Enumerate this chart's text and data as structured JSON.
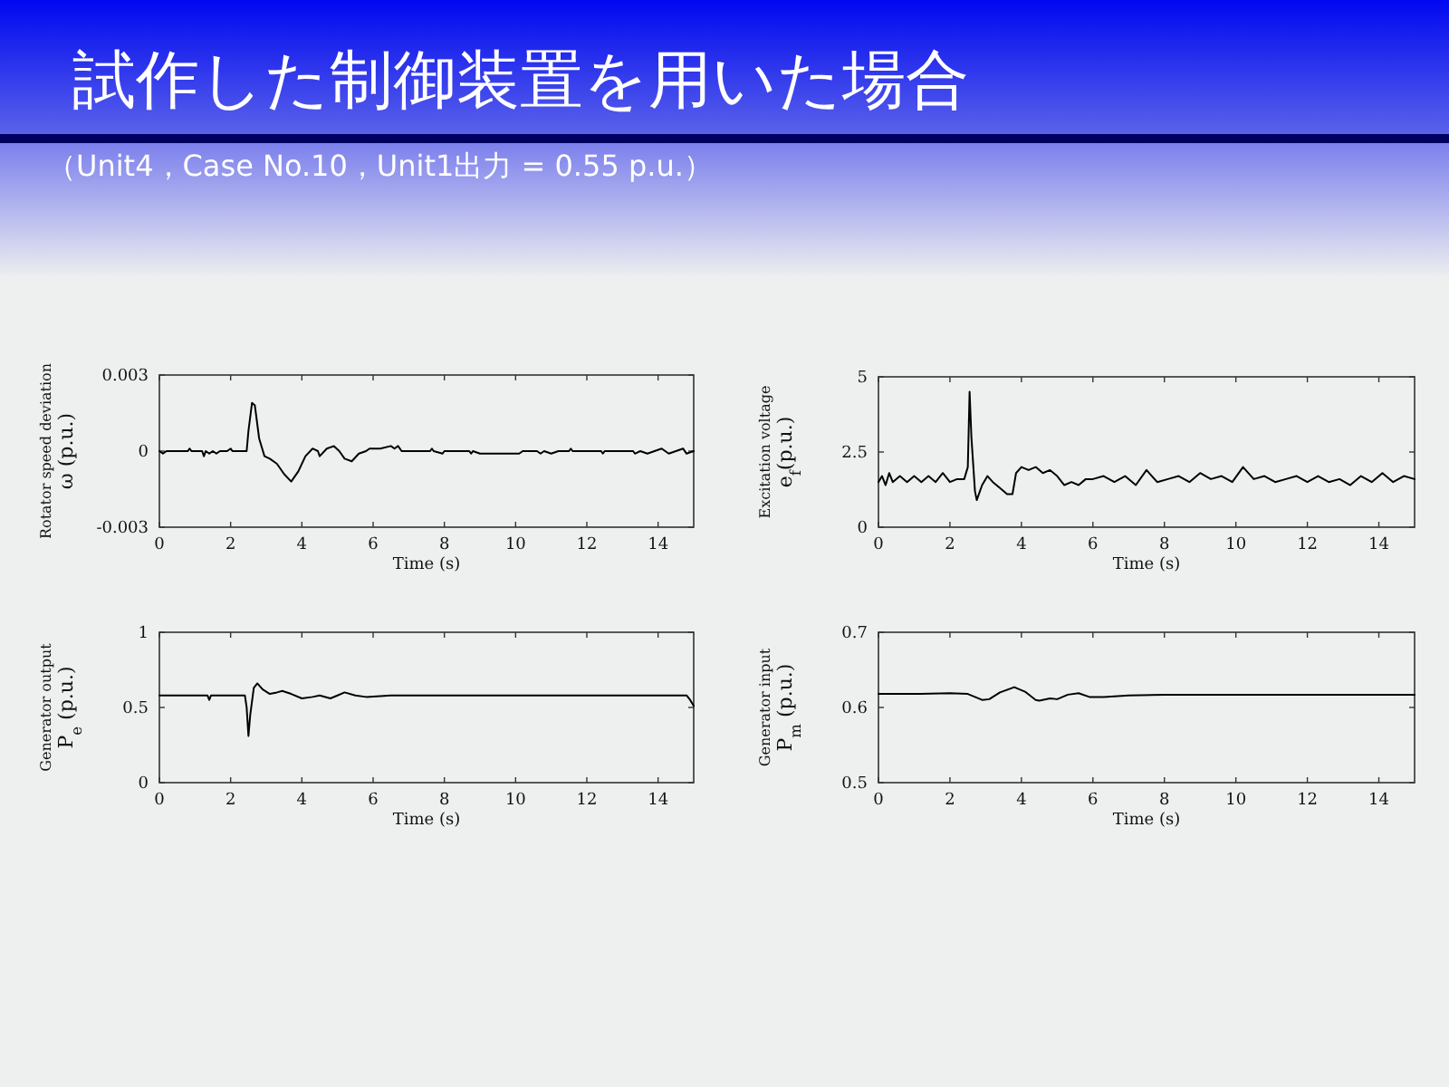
{
  "chart_data": [
    {
      "type": "line",
      "title": "試作した制御装置を用いた場合",
      "subtitle": "（Unit4，Case No.10，Unit1出力 = 0.55 p.u.）",
      "xlabel": "Time (s)",
      "ylabel": "Rotator speed deviation\nω (p.u.)",
      "color": "#000000",
      "xlim": [
        0,
        15
      ],
      "ylim": [
        -0.003,
        0.003
      ],
      "xticks": [
        0,
        2,
        4,
        6,
        8,
        10,
        12,
        14
      ],
      "yticks": [
        -0.003,
        0,
        0.003
      ],
      "x": [
        0,
        0.1,
        0.2,
        0.8,
        0.85,
        0.9,
        1.2,
        1.25,
        1.3,
        1.4,
        1.5,
        1.6,
        1.7,
        1.9,
        2.0,
        2.05,
        2.45,
        2.5,
        2.6,
        2.68,
        2.8,
        2.95,
        3.1,
        3.3,
        3.5,
        3.7,
        3.9,
        4.1,
        4.3,
        4.45,
        4.5,
        4.7,
        4.9,
        5.05,
        5.2,
        5.4,
        5.6,
        5.8,
        5.9,
        6.2,
        6.5,
        6.6,
        6.7,
        6.8,
        7.6,
        7.65,
        7.7,
        7.95,
        8.0,
        8.7,
        8.75,
        8.8,
        9.0,
        9.1,
        10.1,
        10.2,
        10.6,
        10.7,
        10.8,
        11.0,
        11.2,
        11.5,
        11.55,
        11.6,
        12.4,
        12.45,
        12.5,
        13.3,
        13.35,
        13.5,
        13.7,
        13.9,
        14.1,
        14.3,
        14.5,
        14.7,
        14.8,
        15
      ],
      "values": [
        0,
        -0.0001,
        0,
        0,
        0.0001,
        0,
        0,
        -0.0002,
        0,
        -0.0001,
        0,
        -0.0001,
        0,
        0,
        0.0001,
        0,
        0,
        0.0008,
        0.0019,
        0.0018,
        0.0005,
        -0.0002,
        -0.0003,
        -0.0005,
        -0.0009,
        -0.0012,
        -0.0008,
        -0.0002,
        0.0001,
        0,
        -0.0002,
        0.0001,
        0.0002,
        0,
        -0.0003,
        -0.0004,
        -0.0001,
        0,
        0.0001,
        0.0001,
        0.0002,
        0.0001,
        0.0002,
        0,
        0,
        0.0001,
        0,
        -0.0001,
        0,
        0,
        -0.0001,
        0,
        -0.0001,
        -0.0001,
        -0.0001,
        0,
        0,
        -0.0001,
        0,
        -0.0001,
        0,
        0,
        0.0001,
        0,
        0,
        -0.0001,
        0,
        0,
        -0.0001,
        0,
        -0.0001,
        0,
        0.0001,
        -0.0001,
        0,
        0.0001,
        -0.0001,
        0
      ]
    },
    {
      "type": "line",
      "xlabel": "Time (s)",
      "ylabel": "Excitation voltage\ne$_{f}$(p.u.)",
      "color": "#000000",
      "xlim": [
        0,
        15
      ],
      "ylim": [
        0,
        5
      ],
      "xticks": [
        0,
        2,
        4,
        6,
        8,
        10,
        12,
        14
      ],
      "yticks": [
        0,
        2.5,
        5
      ],
      "x": [
        0,
        0.1,
        0.2,
        0.3,
        0.4,
        0.6,
        0.8,
        1.0,
        1.2,
        1.4,
        1.6,
        1.8,
        2.0,
        2.2,
        2.4,
        2.5,
        2.55,
        2.6,
        2.7,
        2.75,
        2.9,
        3.05,
        3.2,
        3.4,
        3.6,
        3.75,
        3.85,
        4.0,
        4.2,
        4.4,
        4.6,
        4.8,
        5.0,
        5.2,
        5.4,
        5.6,
        5.8,
        6.0,
        6.3,
        6.6,
        6.9,
        7.2,
        7.5,
        7.8,
        8.1,
        8.4,
        8.7,
        9.0,
        9.3,
        9.6,
        9.9,
        10.2,
        10.5,
        10.8,
        11.1,
        11.4,
        11.7,
        12.0,
        12.3,
        12.6,
        12.9,
        13.2,
        13.5,
        13.8,
        14.1,
        14.4,
        14.7,
        15
      ],
      "values": [
        1.5,
        1.7,
        1.4,
        1.8,
        1.5,
        1.7,
        1.5,
        1.7,
        1.5,
        1.7,
        1.5,
        1.8,
        1.5,
        1.6,
        1.6,
        2.0,
        4.5,
        3.0,
        1.2,
        0.9,
        1.4,
        1.7,
        1.5,
        1.3,
        1.1,
        1.1,
        1.8,
        2.0,
        1.9,
        2.0,
        1.8,
        1.9,
        1.7,
        1.4,
        1.5,
        1.4,
        1.6,
        1.6,
        1.7,
        1.5,
        1.7,
        1.4,
        1.9,
        1.5,
        1.6,
        1.7,
        1.5,
        1.8,
        1.6,
        1.7,
        1.5,
        2.0,
        1.6,
        1.7,
        1.5,
        1.6,
        1.7,
        1.5,
        1.7,
        1.5,
        1.6,
        1.4,
        1.7,
        1.5,
        1.8,
        1.5,
        1.7,
        1.6
      ]
    },
    {
      "type": "line",
      "xlabel": "Time (s)",
      "ylabel": "Generator output\nP$_{e}$ (p.u.)",
      "color": "#000000",
      "xlim": [
        0,
        15
      ],
      "ylim": [
        0,
        1
      ],
      "xticks": [
        0,
        2,
        4,
        6,
        8,
        10,
        12,
        14
      ],
      "yticks": [
        0,
        0.5,
        1
      ],
      "x": [
        0,
        1.35,
        1.4,
        1.45,
        2.4,
        2.45,
        2.5,
        2.55,
        2.65,
        2.75,
        2.9,
        3.1,
        3.3,
        3.45,
        3.7,
        4.0,
        4.3,
        4.5,
        4.8,
        5.0,
        5.2,
        5.5,
        5.8,
        6.5,
        14.8,
        14.9,
        15
      ],
      "values": [
        0.58,
        0.58,
        0.55,
        0.58,
        0.58,
        0.5,
        0.31,
        0.45,
        0.63,
        0.66,
        0.62,
        0.59,
        0.6,
        0.61,
        0.59,
        0.56,
        0.57,
        0.58,
        0.56,
        0.58,
        0.6,
        0.58,
        0.57,
        0.58,
        0.58,
        0.55,
        0.51
      ]
    },
    {
      "type": "line",
      "xlabel": "Time (s)",
      "ylabel": "Generator input\nP$_{m}$ (p.u.)",
      "color": "#000000",
      "xlim": [
        0,
        15
      ],
      "ylim": [
        0.5,
        0.7
      ],
      "xticks": [
        0,
        2,
        4,
        6,
        8,
        10,
        12,
        14
      ],
      "yticks": [
        0.5,
        0.6,
        0.7
      ],
      "x": [
        0,
        1,
        2,
        2.5,
        2.7,
        2.9,
        3.1,
        3.4,
        3.8,
        4.1,
        4.4,
        4.5,
        4.8,
        5.0,
        5.3,
        5.6,
        5.9,
        6.3,
        7,
        8,
        10,
        12,
        15
      ],
      "values": [
        0.618,
        0.618,
        0.619,
        0.618,
        0.614,
        0.61,
        0.611,
        0.62,
        0.627,
        0.621,
        0.61,
        0.609,
        0.612,
        0.611,
        0.617,
        0.619,
        0.614,
        0.614,
        0.616,
        0.617,
        0.617,
        0.617,
        0.617
      ]
    }
  ]
}
